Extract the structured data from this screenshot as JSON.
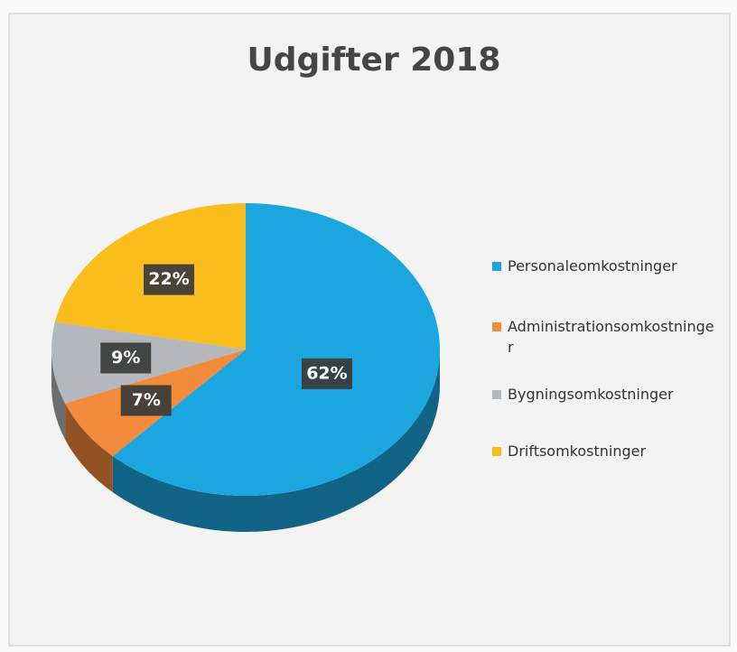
{
  "chart_data": {
    "type": "pie",
    "title": "Udgifter 2018",
    "categories": [
      "Personaleomkostninger",
      "Administrationsomkostninger",
      "Bygningsomkostninger",
      "Driftsomkostninger"
    ],
    "values": [
      62,
      7,
      9,
      22
    ],
    "value_labels": [
      "62%",
      "7%",
      "9%",
      "22%"
    ],
    "colors": [
      "#1ca6df",
      "#f38b3c",
      "#b4b7bb",
      "#f9bd1c"
    ],
    "legend": "right"
  }
}
